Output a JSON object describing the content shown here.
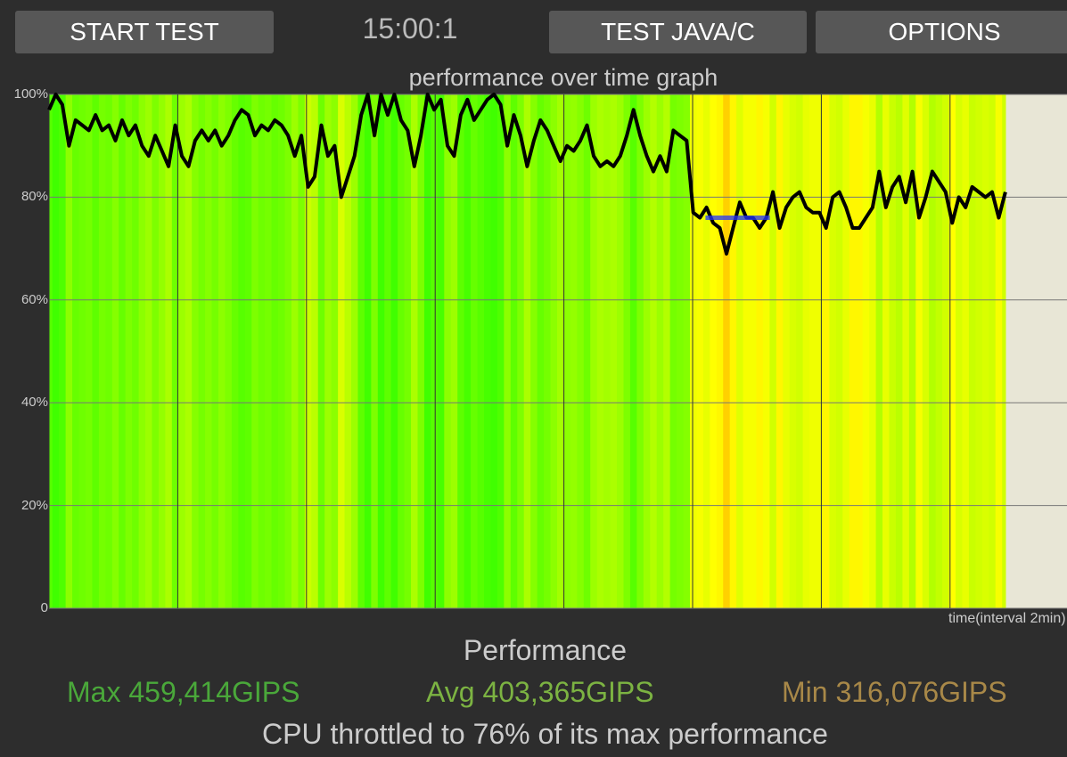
{
  "toolbar": {
    "start": "START TEST",
    "timer": "15:00:1",
    "test_mode": "TEST JAVA/C",
    "options": "OPTIONS"
  },
  "chart_data": {
    "type": "line",
    "title": "performance over time graph",
    "xlabel": "time(interval 2min)",
    "ylabel": "",
    "y_ticks": [
      "0",
      "20%",
      "40%",
      "60%",
      "80%",
      "100%"
    ],
    "ylim": [
      0,
      100
    ],
    "xlim_min": [
      0,
      15.8
    ],
    "x_grid_interval_min": 2,
    "duration_min": 14.86,
    "throttle_marker": {
      "value": 76,
      "t_start": 10.2,
      "t_end": 11.2,
      "color": "#2233ff"
    },
    "values": [
      97,
      100,
      98,
      90,
      95,
      94,
      93,
      96,
      93,
      94,
      91,
      95,
      92,
      94,
      90,
      88,
      92,
      89,
      86,
      94,
      88,
      86,
      91,
      93,
      91,
      93,
      90,
      92,
      95,
      97,
      96,
      92,
      94,
      93,
      95,
      94,
      92,
      88,
      92,
      82,
      84,
      94,
      88,
      90,
      80,
      84,
      88,
      96,
      100,
      92,
      100,
      96,
      100,
      95,
      93,
      86,
      92,
      100,
      97,
      99,
      90,
      88,
      96,
      99,
      95,
      97,
      99,
      100,
      98,
      90,
      96,
      92,
      86,
      91,
      95,
      93,
      90,
      87,
      90,
      89,
      91,
      94,
      88,
      86,
      87,
      86,
      88,
      92,
      97,
      92,
      88,
      85,
      88,
      85,
      93,
      92,
      91,
      77,
      76,
      78,
      75,
      74,
      69,
      74,
      79,
      76,
      76,
      74,
      76,
      81,
      74,
      78,
      80,
      81,
      78,
      77,
      77,
      74,
      80,
      81,
      78,
      74,
      74,
      76,
      78,
      85,
      78,
      82,
      84,
      79,
      85,
      76,
      80,
      85,
      83,
      81,
      75,
      80,
      78,
      82,
      81,
      80,
      81,
      76,
      81
    ]
  },
  "summary": {
    "title": "Performance",
    "max": "Max 459,414GIPS",
    "avg": "Avg 403,365GIPS",
    "min": "Min 316,076GIPS",
    "throttle_text": "CPU throttled to 76% of its max performance"
  },
  "colors": {
    "max": "#4aa83a",
    "avg": "#7cb342",
    "min": "#a88848",
    "plot_bg": "#e8e6d6"
  }
}
